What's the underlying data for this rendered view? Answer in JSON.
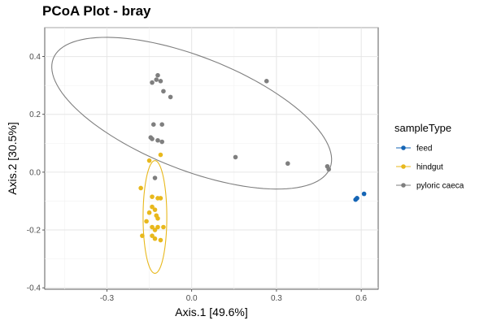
{
  "chart_data": {
    "type": "scatter",
    "title": "PCoA Plot - bray",
    "xlabel": "Axis.1   [49.6%]",
    "ylabel": "Axis.2   [30.5%]",
    "xlim": [
      -0.52,
      0.66
    ],
    "ylim": [
      -0.405,
      0.5
    ],
    "x_ticks": [
      -0.3,
      0.0,
      0.3,
      0.6
    ],
    "x_tick_labels": [
      "-0.3",
      "0.0",
      "0.3",
      "0.6"
    ],
    "y_ticks": [
      -0.4,
      -0.2,
      0.0,
      0.2,
      0.4
    ],
    "y_tick_labels": [
      "-0.4",
      "-0.2",
      "0.0",
      "0.2",
      "0.4"
    ],
    "grid": true,
    "legend": {
      "title": "sampleType",
      "placement": "right"
    },
    "series": [
      {
        "name": "feed",
        "color": "#1565b5",
        "points": [
          [
            0.61,
            -0.075
          ],
          [
            0.585,
            -0.09
          ],
          [
            0.58,
            -0.095
          ],
          [
            0.585,
            -0.09
          ]
        ],
        "ellipse": null
      },
      {
        "name": "hindgut",
        "color": "#e8b81c",
        "points": [
          [
            -0.11,
            0.06
          ],
          [
            -0.15,
            0.04
          ],
          [
            -0.18,
            -0.055
          ],
          [
            -0.14,
            -0.085
          ],
          [
            -0.12,
            -0.09
          ],
          [
            -0.11,
            -0.09
          ],
          [
            -0.14,
            -0.12
          ],
          [
            -0.15,
            -0.14
          ],
          [
            -0.13,
            -0.13
          ],
          [
            -0.125,
            -0.15
          ],
          [
            -0.16,
            -0.17
          ],
          [
            -0.12,
            -0.16
          ],
          [
            -0.14,
            -0.19
          ],
          [
            -0.12,
            -0.19
          ],
          [
            -0.13,
            -0.2
          ],
          [
            -0.1,
            -0.19
          ],
          [
            -0.175,
            -0.22
          ],
          [
            -0.14,
            -0.22
          ],
          [
            -0.13,
            -0.23
          ],
          [
            -0.11,
            -0.235
          ]
        ],
        "ellipse": {
          "cx": -0.13,
          "cy": -0.155,
          "rx": 0.042,
          "ry": 0.195,
          "angle": 0
        }
      },
      {
        "name": "pyloric caeca",
        "color": "#7f7f7f",
        "points": [
          [
            -0.12,
            0.335
          ],
          [
            -0.125,
            0.32
          ],
          [
            -0.11,
            0.315
          ],
          [
            -0.14,
            0.31
          ],
          [
            -0.1,
            0.28
          ],
          [
            -0.075,
            0.26
          ],
          [
            -0.135,
            0.165
          ],
          [
            -0.105,
            0.165
          ],
          [
            -0.145,
            0.12
          ],
          [
            -0.14,
            0.115
          ],
          [
            -0.12,
            0.11
          ],
          [
            -0.105,
            0.105
          ],
          [
            -0.13,
            -0.02
          ],
          [
            0.155,
            0.052
          ],
          [
            0.265,
            0.315
          ],
          [
            0.34,
            0.03
          ],
          [
            0.48,
            0.02
          ],
          [
            0.485,
            0.01
          ]
        ],
        "ellipse": {
          "cx": 0.0,
          "cy": 0.204,
          "rx": 0.525,
          "ry": 0.196,
          "angle": -21
        }
      }
    ]
  }
}
